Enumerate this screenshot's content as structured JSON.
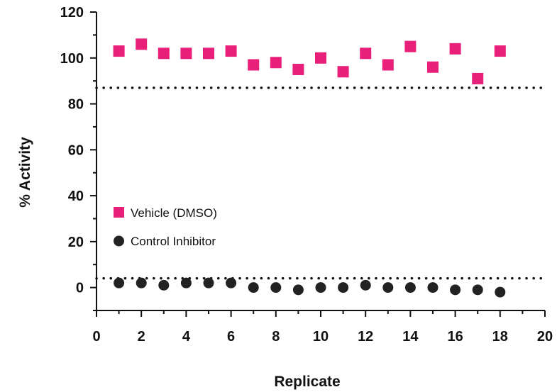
{
  "chart_data": {
    "type": "scatter",
    "xlabel": "Replicate",
    "ylabel": "% Activity",
    "xlim": [
      0,
      20
    ],
    "ylim": [
      -10,
      120
    ],
    "xticks": [
      0,
      2,
      4,
      6,
      8,
      10,
      12,
      14,
      16,
      18,
      20
    ],
    "yticks": [
      0,
      20,
      40,
      60,
      80,
      100,
      120
    ],
    "grid": false,
    "legend_position": "left-lower",
    "threshold_lines": [
      87,
      4
    ],
    "series": [
      {
        "name": "Vehicle (DMSO)",
        "marker": "square",
        "color": "#e8207a",
        "x": [
          1,
          2,
          3,
          4,
          5,
          6,
          7,
          8,
          9,
          10,
          11,
          12,
          13,
          14,
          15,
          16,
          17,
          18
        ],
        "y": [
          103,
          106,
          102,
          102,
          102,
          103,
          97,
          98,
          95,
          100,
          94,
          102,
          97,
          105,
          96,
          104,
          91,
          103
        ]
      },
      {
        "name": "Control Inhibitor",
        "marker": "circle",
        "color": "#222222",
        "x": [
          1,
          2,
          3,
          4,
          5,
          6,
          7,
          8,
          9,
          10,
          11,
          12,
          13,
          14,
          15,
          16,
          17,
          18
        ],
        "y": [
          2,
          2,
          1,
          2,
          2,
          2,
          0,
          0,
          -1,
          0,
          0,
          1,
          0,
          0,
          0,
          -1,
          -1,
          -2
        ]
      }
    ]
  }
}
